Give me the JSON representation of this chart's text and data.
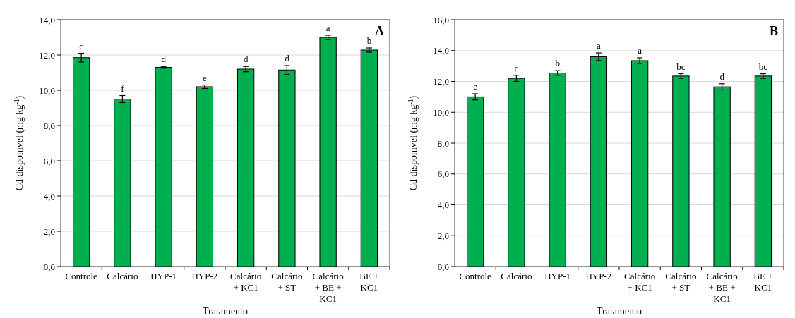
{
  "chart_data": [
    {
      "type": "bar",
      "title": "A",
      "xlabel": "Tratamento",
      "ylabel": "Cd disponível  (mg kg$^{-1}$)",
      "categories": [
        "Controle",
        "Calcário",
        "HYP-1",
        "HYP-2",
        "Calcário + KC1",
        "Calcário + ST",
        "Calcário + BE + KC1",
        "BE + KC1"
      ],
      "series": [
        {
          "color": "#00b050",
          "values": [
            11.85,
            9.5,
            11.3,
            10.2,
            11.2,
            11.15,
            13.0,
            12.28
          ],
          "errors": [
            0.25,
            0.2,
            0.05,
            0.1,
            0.15,
            0.25,
            0.12,
            0.12
          ]
        }
      ],
      "ylim": [
        0,
        14
      ],
      "yticks": [
        {
          "value": 0,
          "label": "0,0"
        },
        {
          "value": 2,
          "label": "2,0"
        },
        {
          "value": 4,
          "label": "4,0"
        },
        {
          "value": 6,
          "label": "6,0"
        },
        {
          "value": 8,
          "label": "8,0"
        },
        {
          "value": 10,
          "label": "10,0"
        },
        {
          "value": 12,
          "label": "12,0"
        },
        {
          "value": 14,
          "label": "14,0"
        }
      ],
      "grid": "y",
      "annotations": [
        {
          "text": "c",
          "x": "Controle",
          "y": 12.1
        },
        {
          "text": "f",
          "x": "Calcário",
          "y": 9.7
        },
        {
          "text": "d",
          "x": "HYP-1",
          "y": 11.35
        },
        {
          "text": "e",
          "x": "HYP-2",
          "y": 10.3
        },
        {
          "text": "d",
          "x": "Calcário + KC1",
          "y": 11.35
        },
        {
          "text": "d",
          "x": "Calcário + ST",
          "y": 11.4
        },
        {
          "text": "a",
          "x": "Calcário + BE + KC1",
          "y": 13.12
        },
        {
          "text": "b",
          "x": "BE + KC1",
          "y": 12.4
        }
      ]
    },
    {
      "type": "bar",
      "title": "B",
      "xlabel": "Tratamento",
      "ylabel": "Cd disponível  (mg kg$^{-1}$)",
      "categories": [
        "Controle",
        "Calcário",
        "HYP-1",
        "HYP-2",
        "Calcário + KC1",
        "Calcário + ST",
        "Calcário + BE + KC1",
        "BE + KC1"
      ],
      "series": [
        {
          "color": "#00b050",
          "values": [
            11.0,
            12.2,
            12.55,
            13.6,
            13.35,
            12.35,
            11.65,
            12.35
          ],
          "errors": [
            0.2,
            0.2,
            0.15,
            0.25,
            0.18,
            0.15,
            0.2,
            0.15
          ]
        }
      ],
      "ylim": [
        0,
        16
      ],
      "yticks": [
        {
          "value": 0,
          "label": "0,0"
        },
        {
          "value": 2,
          "label": "2,0"
        },
        {
          "value": 4,
          "label": "4,0"
        },
        {
          "value": 6,
          "label": "6,0"
        },
        {
          "value": 8,
          "label": "8,0"
        },
        {
          "value": 10,
          "label": "10,0"
        },
        {
          "value": 12,
          "label": "12,0"
        },
        {
          "value": 14,
          "label": "14,0"
        },
        {
          "value": 16,
          "label": "16,0"
        }
      ],
      "grid": "y",
      "annotations": [
        {
          "text": "e",
          "x": "Controle",
          "y": 11.2
        },
        {
          "text": "c",
          "x": "Calcário",
          "y": 12.4
        },
        {
          "text": "b",
          "x": "HYP-1",
          "y": 12.7
        },
        {
          "text": "a",
          "x": "HYP-2",
          "y": 13.85
        },
        {
          "text": "a",
          "x": "Calcário + KC1",
          "y": 13.53
        },
        {
          "text": "bc",
          "x": "Calcário + ST",
          "y": 12.5
        },
        {
          "text": "d",
          "x": "Calcário + BE + KC1",
          "y": 11.85
        },
        {
          "text": "bc",
          "x": "BE + KC1",
          "y": 12.5
        }
      ]
    }
  ]
}
